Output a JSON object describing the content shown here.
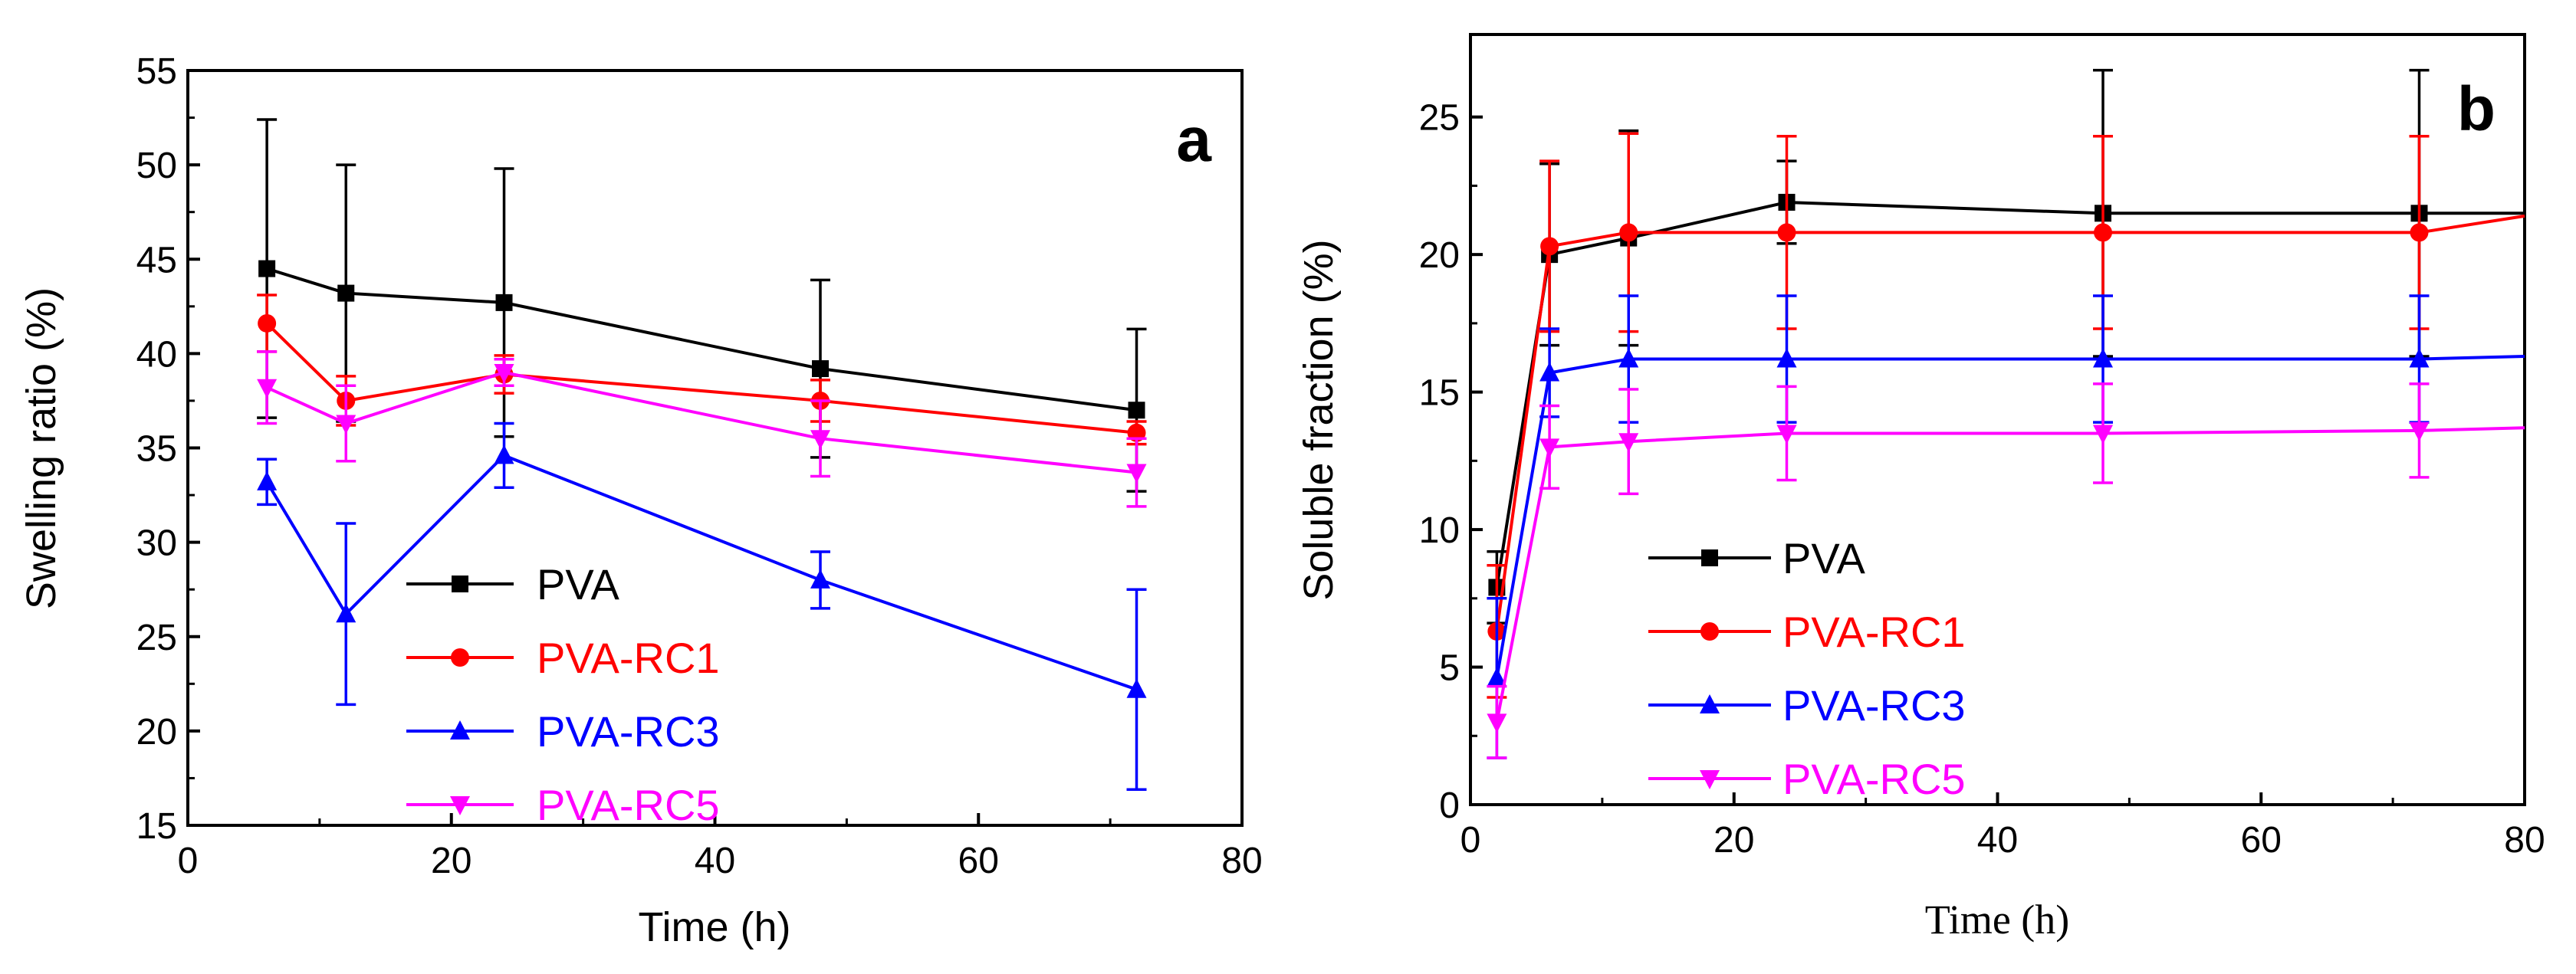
{
  "chart_data": [
    {
      "type": "line",
      "panel_label": "a",
      "xlabel": "Time (h)",
      "ylabel": "Swelling ratio (%)",
      "xlim": [
        0,
        80
      ],
      "ylim": [
        15,
        55
      ],
      "xticks": [
        0,
        20,
        40,
        60,
        80
      ],
      "yticks": [
        15,
        20,
        25,
        30,
        35,
        40,
        45,
        50,
        55
      ],
      "legend_position": "bottom-left",
      "series": [
        {
          "name": "PVA",
          "color": "#000000",
          "marker": "square",
          "x": [
            6,
            12,
            24,
            48,
            72
          ],
          "y": [
            44.5,
            43.2,
            42.7,
            39.2,
            37.0
          ],
          "err": [
            7.9,
            6.8,
            7.1,
            4.7,
            4.3
          ]
        },
        {
          "name": "PVA-RC1",
          "color": "#ff0000",
          "marker": "circle",
          "x": [
            6,
            12,
            24,
            48,
            72
          ],
          "y": [
            41.6,
            37.5,
            38.9,
            37.5,
            35.8
          ],
          "err": [
            1.5,
            1.3,
            1.0,
            1.1,
            0.6
          ]
        },
        {
          "name": "PVA-RC3",
          "color": "#0000ff",
          "marker": "triangle-up",
          "x": [
            6,
            12,
            24,
            48,
            72
          ],
          "y": [
            33.2,
            26.2,
            34.6,
            28.0,
            22.2
          ],
          "err": [
            1.2,
            4.8,
            1.7,
            1.5,
            5.3
          ]
        },
        {
          "name": "PVA-RC5",
          "color": "#ff00ff",
          "marker": "triangle-down",
          "x": [
            6,
            12,
            24,
            48,
            72
          ],
          "y": [
            38.2,
            36.3,
            39.0,
            35.5,
            33.7
          ],
          "err": [
            1.9,
            2.0,
            0.7,
            2.0,
            1.8
          ]
        }
      ]
    },
    {
      "type": "line",
      "panel_label": "b",
      "xlabel": "Time (h)",
      "ylabel": "Soluble fraction (%)",
      "xlim": [
        0,
        80
      ],
      "ylim": [
        0,
        28
      ],
      "xticks": [
        0,
        20,
        40,
        60,
        80
      ],
      "yticks": [
        0,
        5,
        10,
        15,
        20,
        25
      ],
      "legend_position": "bottom-left",
      "series": [
        {
          "name": "PVA",
          "color": "#000000",
          "marker": "square",
          "x": [
            2,
            6,
            12,
            24,
            48,
            72,
            80
          ],
          "y": [
            7.9,
            20.0,
            20.6,
            21.9,
            21.5,
            21.5,
            21.5
          ],
          "err": [
            1.3,
            3.3,
            3.9,
            1.5,
            5.2,
            5.2,
            null
          ]
        },
        {
          "name": "PVA-RC1",
          "color": "#ff0000",
          "marker": "circle",
          "x": [
            2,
            6,
            12,
            24,
            48,
            72,
            80
          ],
          "y": [
            6.3,
            20.3,
            20.8,
            20.8,
            20.8,
            20.8,
            21.4
          ],
          "err": [
            2.4,
            3.1,
            3.6,
            3.5,
            3.5,
            3.5,
            null
          ]
        },
        {
          "name": "PVA-RC3",
          "color": "#0000ff",
          "marker": "triangle-up",
          "x": [
            2,
            6,
            12,
            24,
            48,
            72,
            80
          ],
          "y": [
            4.6,
            15.7,
            16.2,
            16.2,
            16.2,
            16.2,
            16.3
          ],
          "err": [
            2.9,
            1.6,
            2.3,
            2.3,
            2.3,
            2.3,
            null
          ]
        },
        {
          "name": "PVA-RC5",
          "color": "#ff00ff",
          "marker": "triangle-down",
          "x": [
            2,
            6,
            12,
            24,
            48,
            72,
            80
          ],
          "y": [
            3.0,
            13.0,
            13.2,
            13.5,
            13.5,
            13.6,
            13.7
          ],
          "err": [
            1.3,
            1.5,
            1.9,
            1.7,
            1.8,
            1.7,
            null
          ]
        }
      ]
    }
  ]
}
